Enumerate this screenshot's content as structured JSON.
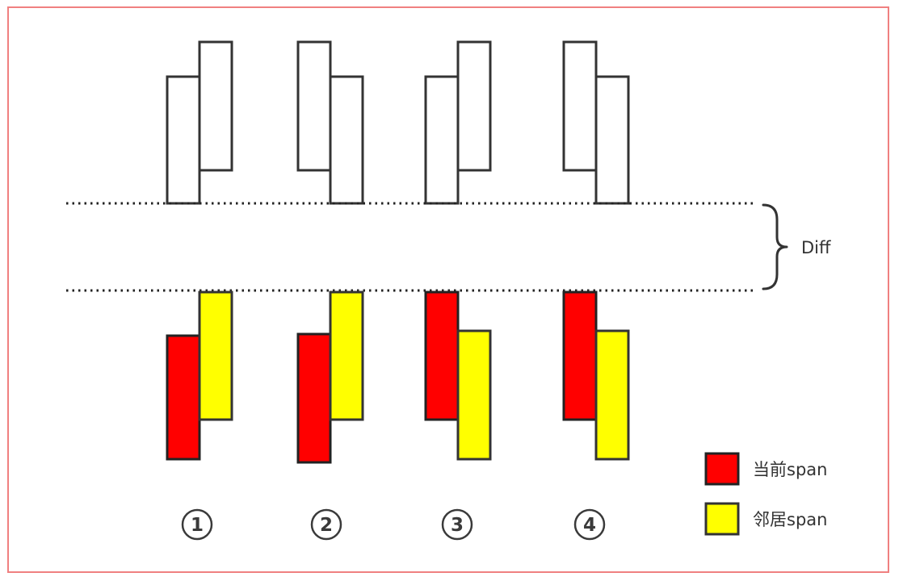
{
  "diff_label": "Diff",
  "legend": {
    "current": {
      "label": "当前span",
      "color": "#ff0000"
    },
    "neighbor": {
      "label": "邻居span",
      "color": "#ffff00"
    }
  },
  "cases": [
    {
      "number": "1"
    },
    {
      "number": "2"
    },
    {
      "number": "3"
    },
    {
      "number": "4"
    }
  ],
  "colors": {
    "frame_border": "#f08080",
    "outline": "#333333",
    "current": "#ff0000",
    "neighbor": "#ffff00"
  }
}
